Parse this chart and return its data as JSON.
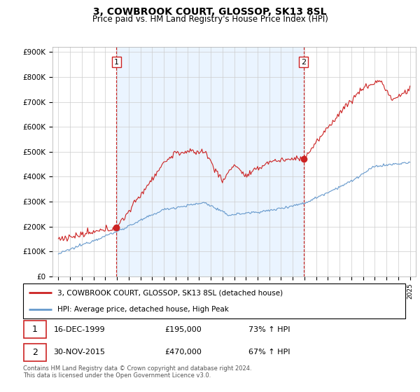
{
  "title": "3, COWBROOK COURT, GLOSSOP, SK13 8SL",
  "subtitle": "Price paid vs. HM Land Registry's House Price Index (HPI)",
  "ylabel_ticks": [
    "£0",
    "£100K",
    "£200K",
    "£300K",
    "£400K",
    "£500K",
    "£600K",
    "£700K",
    "£800K",
    "£900K"
  ],
  "ytick_values": [
    0,
    100000,
    200000,
    300000,
    400000,
    500000,
    600000,
    700000,
    800000,
    900000
  ],
  "ylim": [
    0,
    920000
  ],
  "sale1_date": 1999.96,
  "sale1_price": 195000,
  "sale2_date": 2015.92,
  "sale2_price": 470000,
  "red_line_color": "#cc2222",
  "blue_line_color": "#6699cc",
  "bg_fill_color": "#ddeeff",
  "dashed_color": "#cc2222",
  "legend_red_label": "3, COWBROOK COURT, GLOSSOP, SK13 8SL (detached house)",
  "legend_blue_label": "HPI: Average price, detached house, High Peak",
  "footnote": "Contains HM Land Registry data © Crown copyright and database right 2024.\nThis data is licensed under the Open Government Licence v3.0.",
  "xlim_left": 1994.5,
  "xlim_right": 2025.5,
  "fig_width": 6.0,
  "fig_height": 5.6,
  "dpi": 100
}
